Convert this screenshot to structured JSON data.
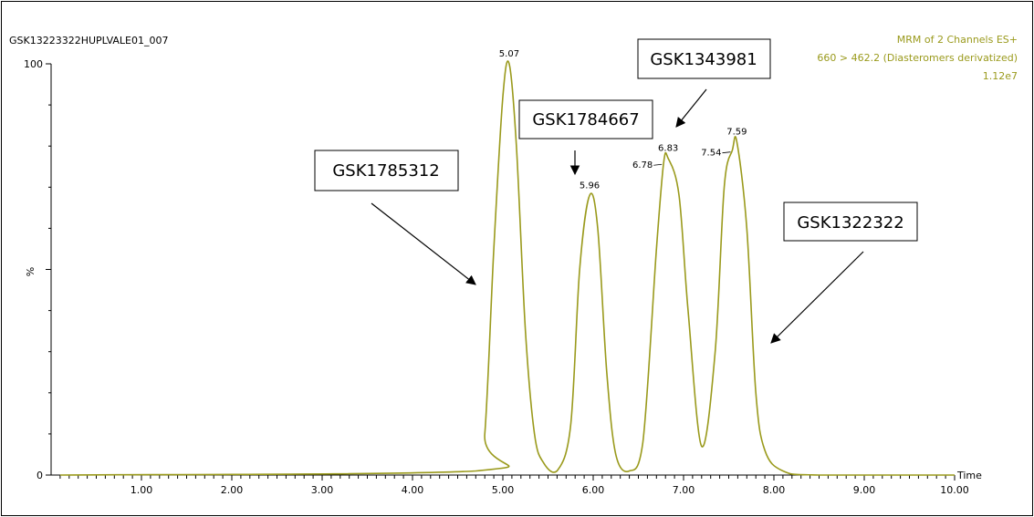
{
  "header": {
    "sample_id": "GSK13223322HUPLVALE01_007",
    "channel_line1": "MRM of 2 Channels ES+",
    "channel_line2": "660 > 462.2 (Diasteromers derivatized)",
    "channel_line3": "1.12e7"
  },
  "colors": {
    "trace": "#9a9a1c",
    "axis": "#000000",
    "header_accent": "#9a9a1c"
  },
  "callouts": [
    {
      "label": "GSK1785312"
    },
    {
      "label": "GSK1784667"
    },
    {
      "label": "GSK1343981"
    },
    {
      "label": "GSK1322322"
    }
  ],
  "chart_data": {
    "type": "line",
    "xlabel": "Time",
    "ylabel": "%",
    "xlim": [
      0.0,
      10.0
    ],
    "ylim": [
      0,
      100
    ],
    "x_ticks": [
      "1.00",
      "2.00",
      "3.00",
      "4.00",
      "5.00",
      "6.00",
      "7.00",
      "8.00",
      "9.00",
      "10.00"
    ],
    "y_ticks": [
      "0",
      "100"
    ],
    "grid": false,
    "peaks": [
      {
        "rt": 5.07,
        "label": "5.07",
        "height": 100
      },
      {
        "rt": 5.96,
        "label": "5.96",
        "height": 68
      },
      {
        "rt": 6.78,
        "label": "6.78",
        "height": 76
      },
      {
        "rt": 6.83,
        "label": "6.83",
        "height": 77
      },
      {
        "rt": 7.54,
        "label": "7.54",
        "height": 79
      },
      {
        "rt": 7.59,
        "label": "7.59",
        "height": 81
      }
    ],
    "series": [
      {
        "x": [
          0.1,
          4.7,
          4.8,
          4.9,
          5.0,
          5.07,
          5.15,
          5.25,
          5.35,
          5.45,
          5.6,
          5.75,
          5.85,
          5.96,
          6.05,
          6.15,
          6.25,
          6.4,
          6.55,
          6.7,
          6.78,
          6.83,
          6.95,
          7.05,
          7.2,
          7.35,
          7.45,
          7.54,
          7.59,
          7.7,
          7.8,
          7.9,
          8.1,
          8.5,
          10.0
        ],
        "y": [
          0,
          1,
          10,
          55,
          92,
          100,
          80,
          35,
          10,
          3,
          1,
          12,
          50,
          68,
          60,
          25,
          5,
          1,
          8,
          55,
          76,
          77,
          68,
          40,
          7,
          30,
          70,
          79,
          81,
          60,
          20,
          6,
          1,
          0,
          0
        ]
      }
    ]
  }
}
